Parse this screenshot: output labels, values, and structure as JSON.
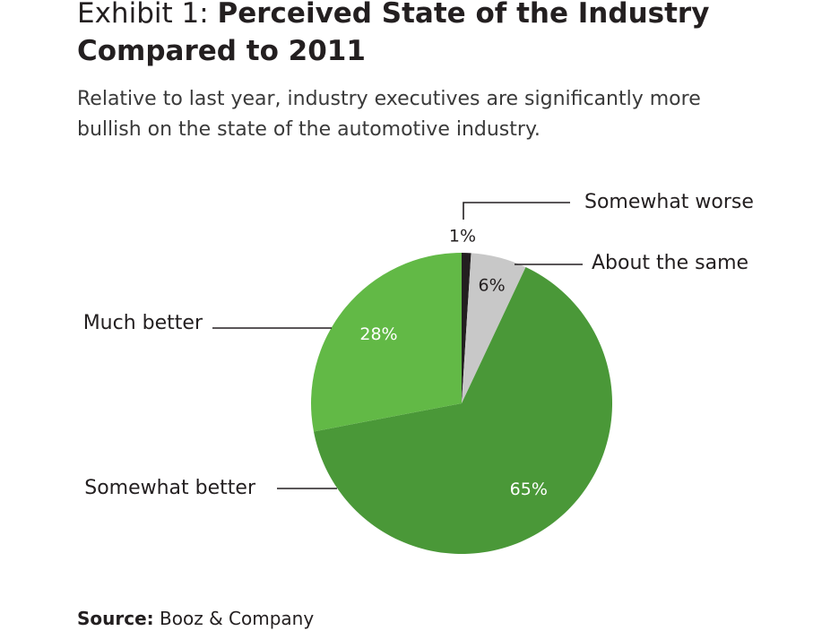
{
  "header": {
    "title_prefix": "Exhibit 1: ",
    "title_bold_line1": "Perceived State of the Industry",
    "title_bold_line2": "Compared to 2011",
    "subtitle_line1": "Relative to last year, industry executives are significantly more",
    "subtitle_line2": "bullish on the state of the automotive industry."
  },
  "chart_data": {
    "type": "pie",
    "slices": [
      {
        "label": "Somewhat worse",
        "value": 1,
        "value_label": "1%",
        "color": "#231f20"
      },
      {
        "label": "About the same",
        "value": 6,
        "value_label": "6%",
        "color": "#c8c8c8"
      },
      {
        "label": "Somewhat better",
        "value": 65,
        "value_label": "65%",
        "color": "#4a9838"
      },
      {
        "label": "Much better",
        "value": 28,
        "value_label": "28%",
        "color": "#62b946"
      }
    ],
    "start": "12 o'clock",
    "direction": "clockwise",
    "legend": "callout labels with leader lines"
  },
  "footer": {
    "source_label": "Source:",
    "source_text": " Booz & Company"
  }
}
